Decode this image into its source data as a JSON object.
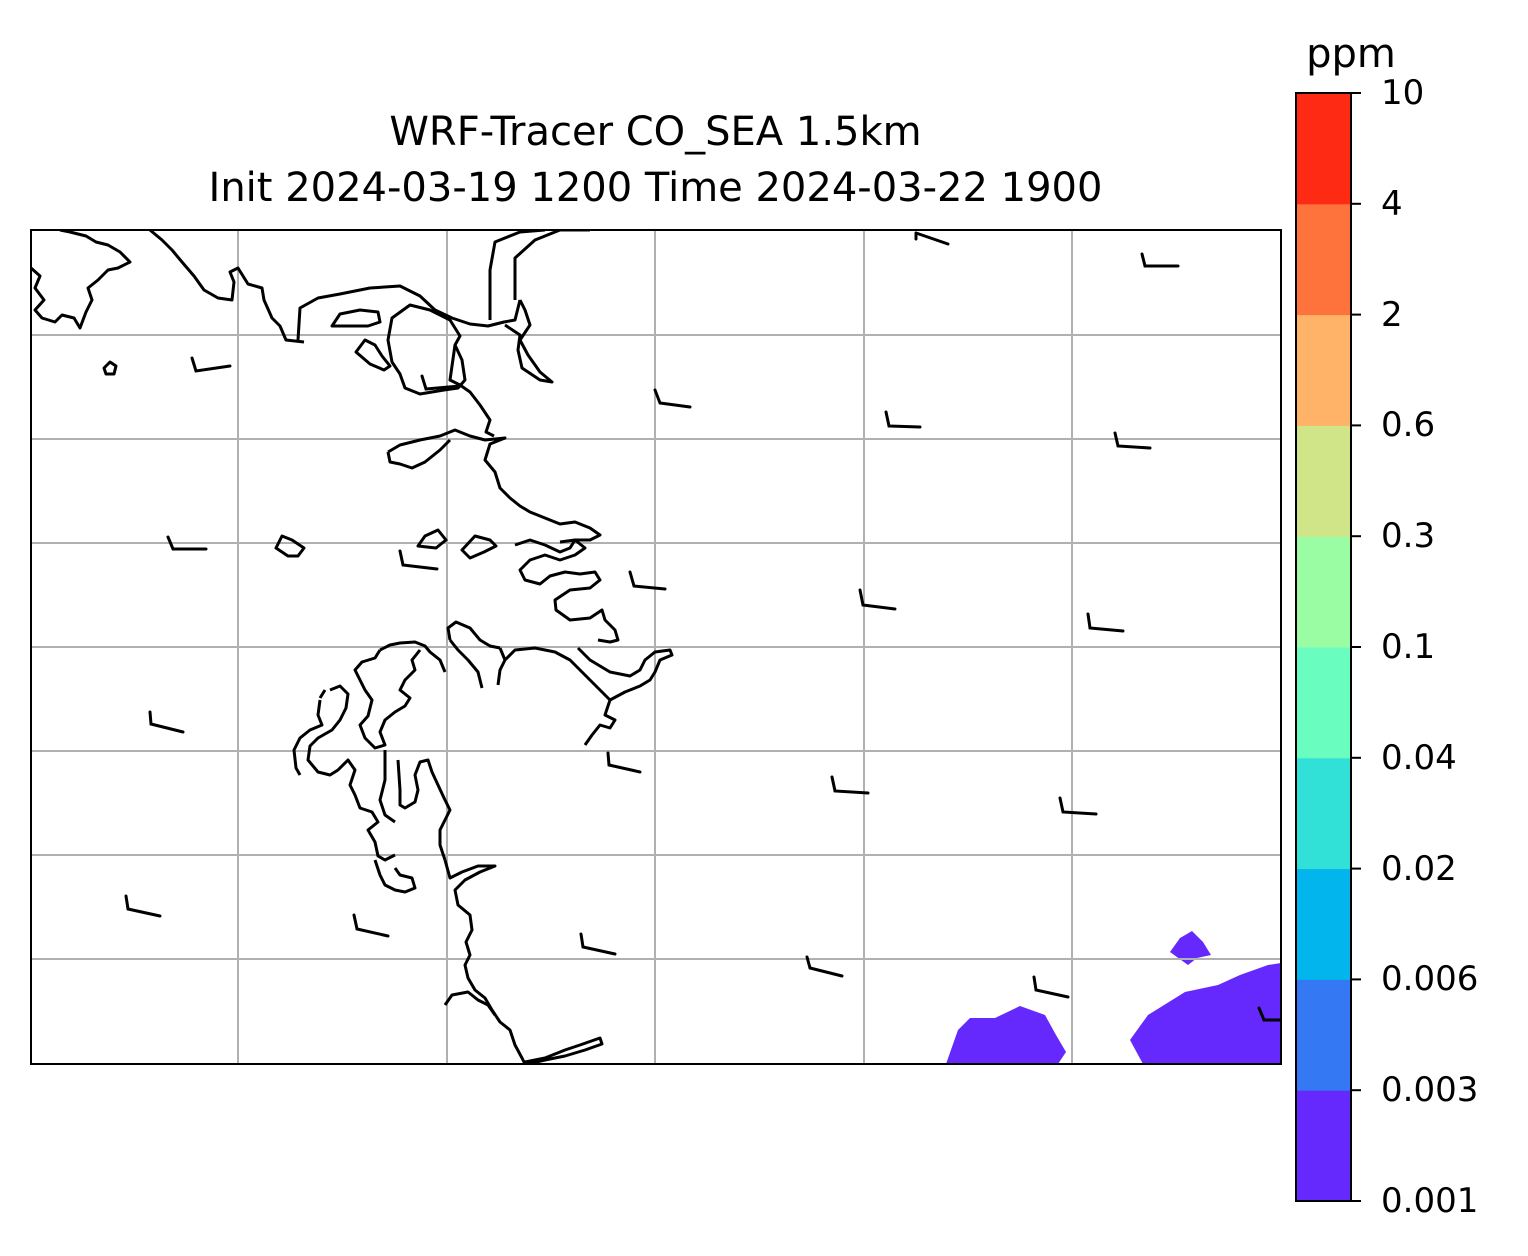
{
  "title": {
    "line1": "WRF-Tracer CO_SEA 1.5km",
    "line2": "Init 2024-03-19 1200 Time 2024-03-22 1900"
  },
  "colorbar": {
    "unit": "ppm",
    "ticks": [
      "0.001",
      "0.003",
      "0.006",
      "0.02",
      "0.04",
      "0.1",
      "0.3",
      "0.6",
      "2",
      "4",
      "10"
    ],
    "colors": [
      "#6529fd",
      "#3478f3",
      "#02b5ec",
      "#31e1d8",
      "#6afdc0",
      "#9afda3",
      "#d0e488",
      "#feb369",
      "#fe733b",
      "#fe2a14"
    ]
  },
  "map": {
    "coastline_color": "#000000",
    "gridline_color": "#b0b0b0",
    "tracer_level_shown": "0.001"
  }
}
